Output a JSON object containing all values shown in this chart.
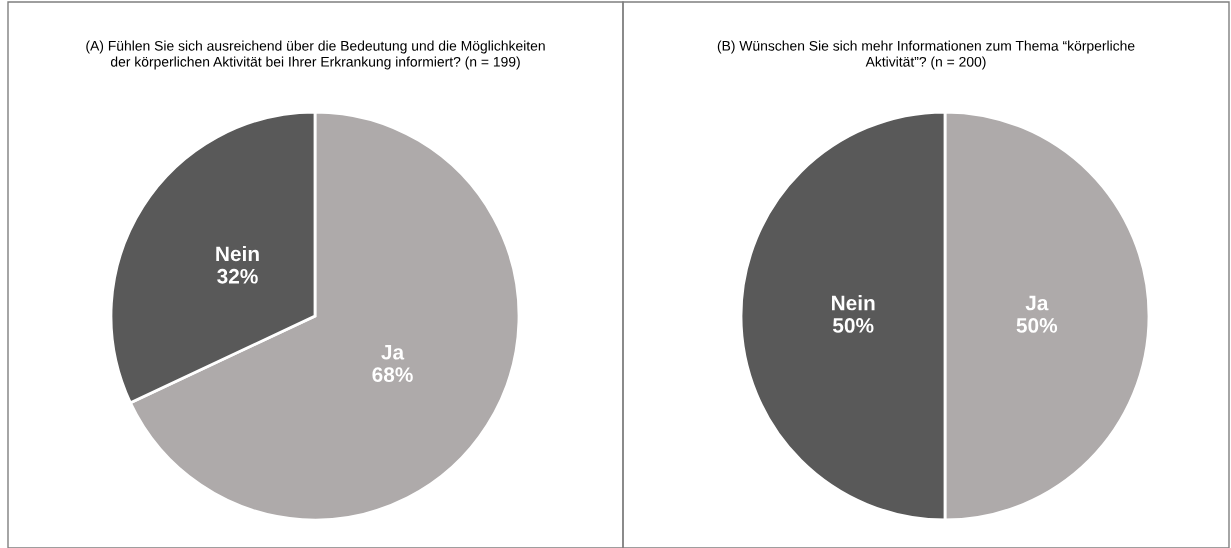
{
  "chart_data": [
    {
      "type": "pie",
      "title": "(A) Fühlen Sie sich ausreichend über die Bedeutung und die Möglichkeiten\nder körperlichen Aktivität bei Ihrer Erkrankung informiert? (n = 199)",
      "categories": [
        "Ja",
        "Nein"
      ],
      "values": [
        68,
        32
      ],
      "value_labels": [
        "68%",
        "32%"
      ],
      "colors": [
        "#aeaaaa",
        "#595959"
      ]
    },
    {
      "type": "pie",
      "title": "(B) Wünschen Sie sich mehr Informationen zum Thema “körperliche\nAktivität”? (n = 200)",
      "categories": [
        "Ja",
        "Nein"
      ],
      "values": [
        50,
        50
      ],
      "value_labels": [
        "50%",
        "50%"
      ],
      "colors": [
        "#aeaaaa",
        "#595959"
      ]
    }
  ]
}
